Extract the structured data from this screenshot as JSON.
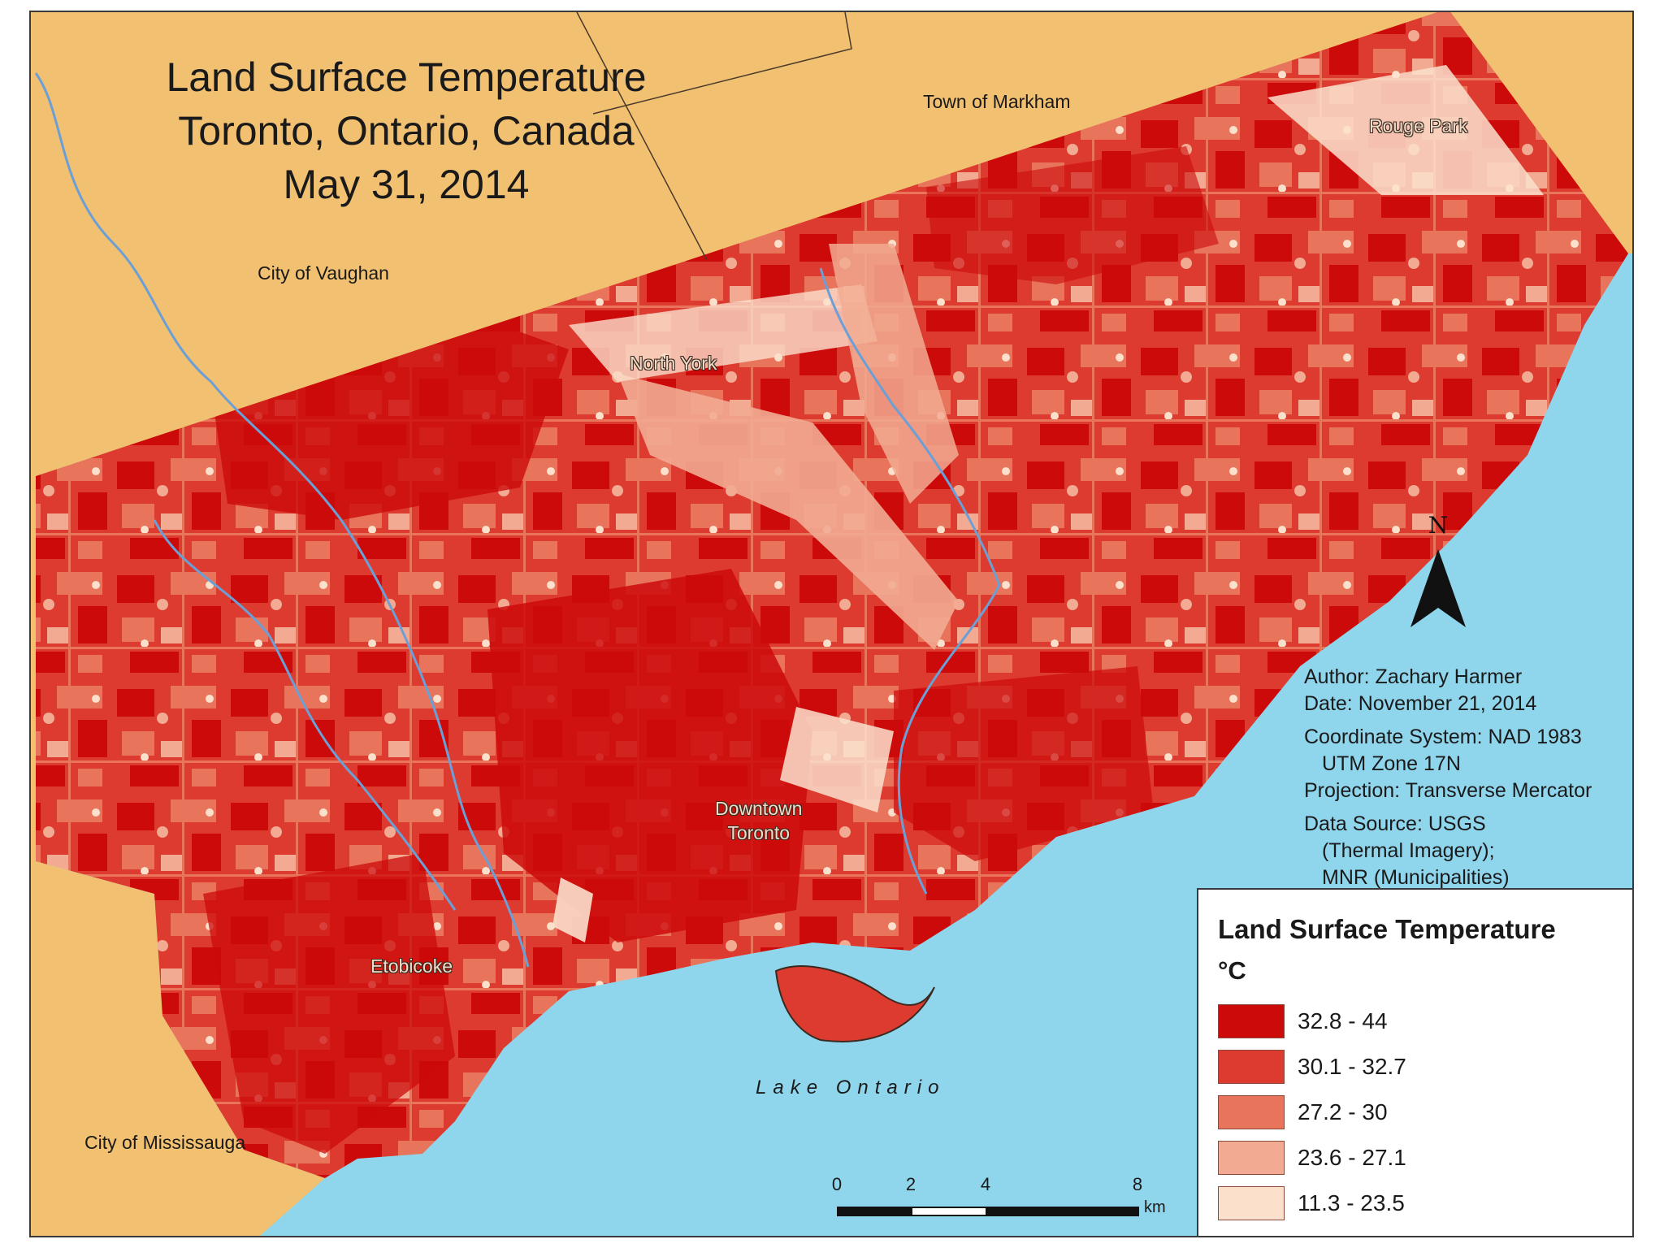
{
  "title": {
    "line1": "Land Surface Temperature",
    "line2": "Toronto, Ontario, Canada",
    "line3": "May 31, 2014"
  },
  "places": {
    "markham": "Town of Markham",
    "rouge_park": "Rouge Park",
    "vaughan": "City of Vaughan",
    "north_york": "North York",
    "downtown_line1": "Downtown",
    "downtown_line2": "Toronto",
    "etobicoke": "Etobicoke",
    "mississauga": "City of Mississauga",
    "lake": "Lake Ontario"
  },
  "info": {
    "author": "Author: Zachary Harmer",
    "date": "Date: November 21, 2014",
    "coord_line1": "Coordinate System: NAD 1983",
    "coord_line2": "UTM Zone 17N",
    "projection": "Projection: Transverse Mercator",
    "source_line1": "Data Source: USGS",
    "source_line2": "(Thermal Imagery);",
    "source_line3": "MNR (Municipalities)"
  },
  "north_arrow": {
    "label": "N"
  },
  "legend": {
    "title": "Land Surface Temperature",
    "unit": "°C",
    "classes": [
      {
        "label": "32.8 - 44",
        "color": "#cc0a0a"
      },
      {
        "label": "30.1 - 32.7",
        "color": "#dd3b30"
      },
      {
        "label": "27.2 - 30",
        "color": "#e8745c"
      },
      {
        "label": "23.6 - 27.1",
        "color": "#f2ab92"
      },
      {
        "label": "11.3 - 23.5",
        "color": "#fbe0cc"
      }
    ]
  },
  "scale_bar": {
    "ticks": [
      "0",
      "2",
      "4",
      "8"
    ],
    "unit": "km"
  },
  "colors": {
    "land": "#f2c071",
    "water": "#8fd5ec",
    "river": "#6b9fd6",
    "boundary": "#4a3a2a"
  }
}
